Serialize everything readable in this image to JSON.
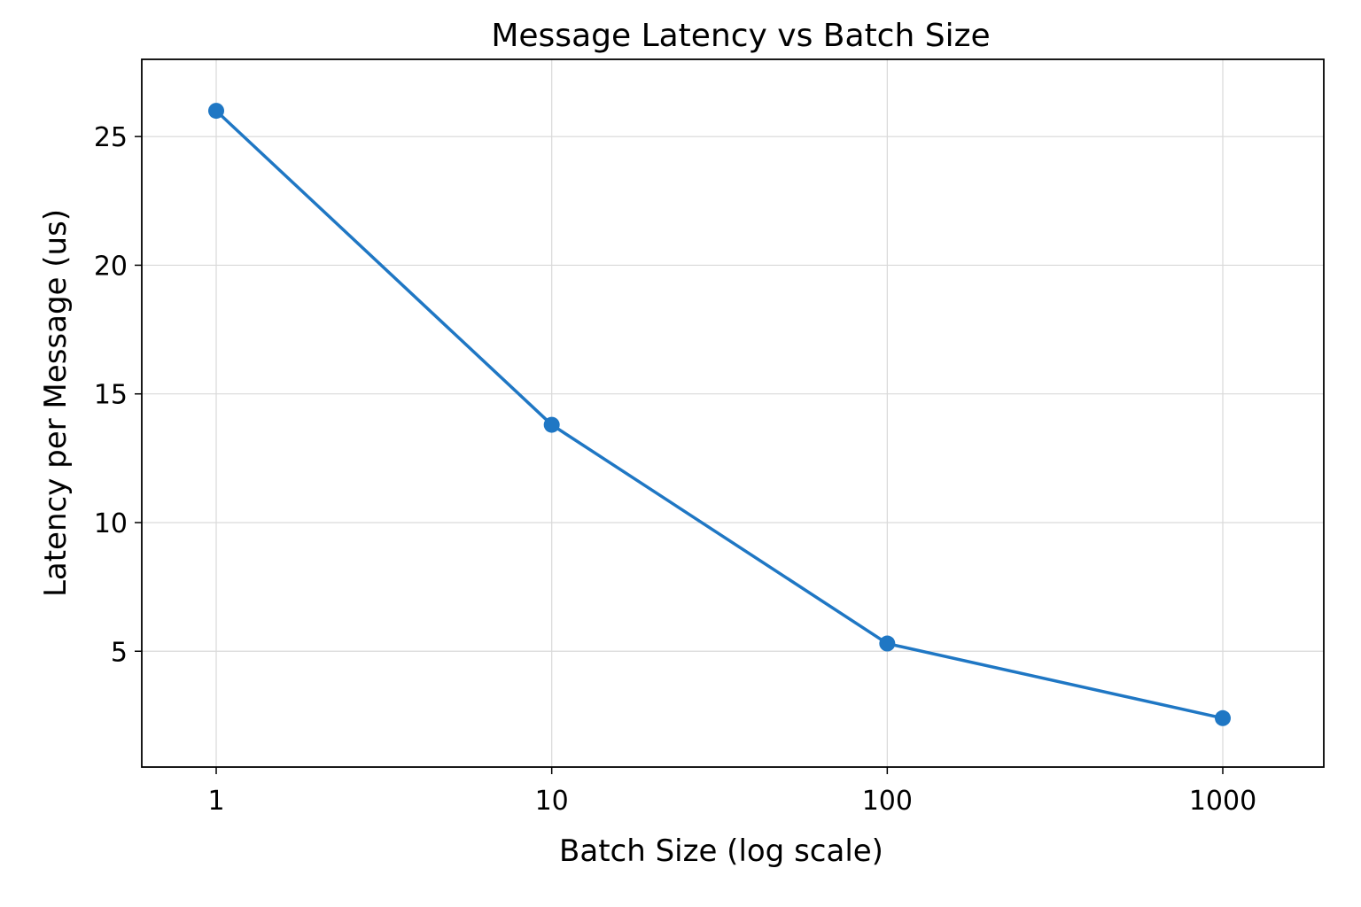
{
  "chart_data": {
    "type": "line",
    "title": "Message Latency vs Batch Size",
    "xlabel": "Batch Size (log scale)",
    "ylabel": "Latency per Message (us)",
    "x_scale": "log",
    "x": [
      1,
      10,
      100,
      1000
    ],
    "xlim": [
      0.6,
      2000
    ],
    "ylim": [
      0.5,
      28
    ],
    "x_ticks": [
      {
        "value": 1,
        "label": "1"
      },
      {
        "value": 10,
        "label": "10"
      },
      {
        "value": 100,
        "label": "100"
      },
      {
        "value": 1000,
        "label": "1000"
      }
    ],
    "y_ticks": [
      {
        "value": 5,
        "label": "5"
      },
      {
        "value": 10,
        "label": "10"
      },
      {
        "value": 15,
        "label": "15"
      },
      {
        "value": 20,
        "label": "20"
      },
      {
        "value": 25,
        "label": "25"
      }
    ],
    "series": [
      {
        "values": [
          26.0,
          13.8,
          5.3,
          2.4
        ],
        "color": "#1f77c4",
        "marker": "circle"
      }
    ],
    "grid": true,
    "legend": "none"
  }
}
